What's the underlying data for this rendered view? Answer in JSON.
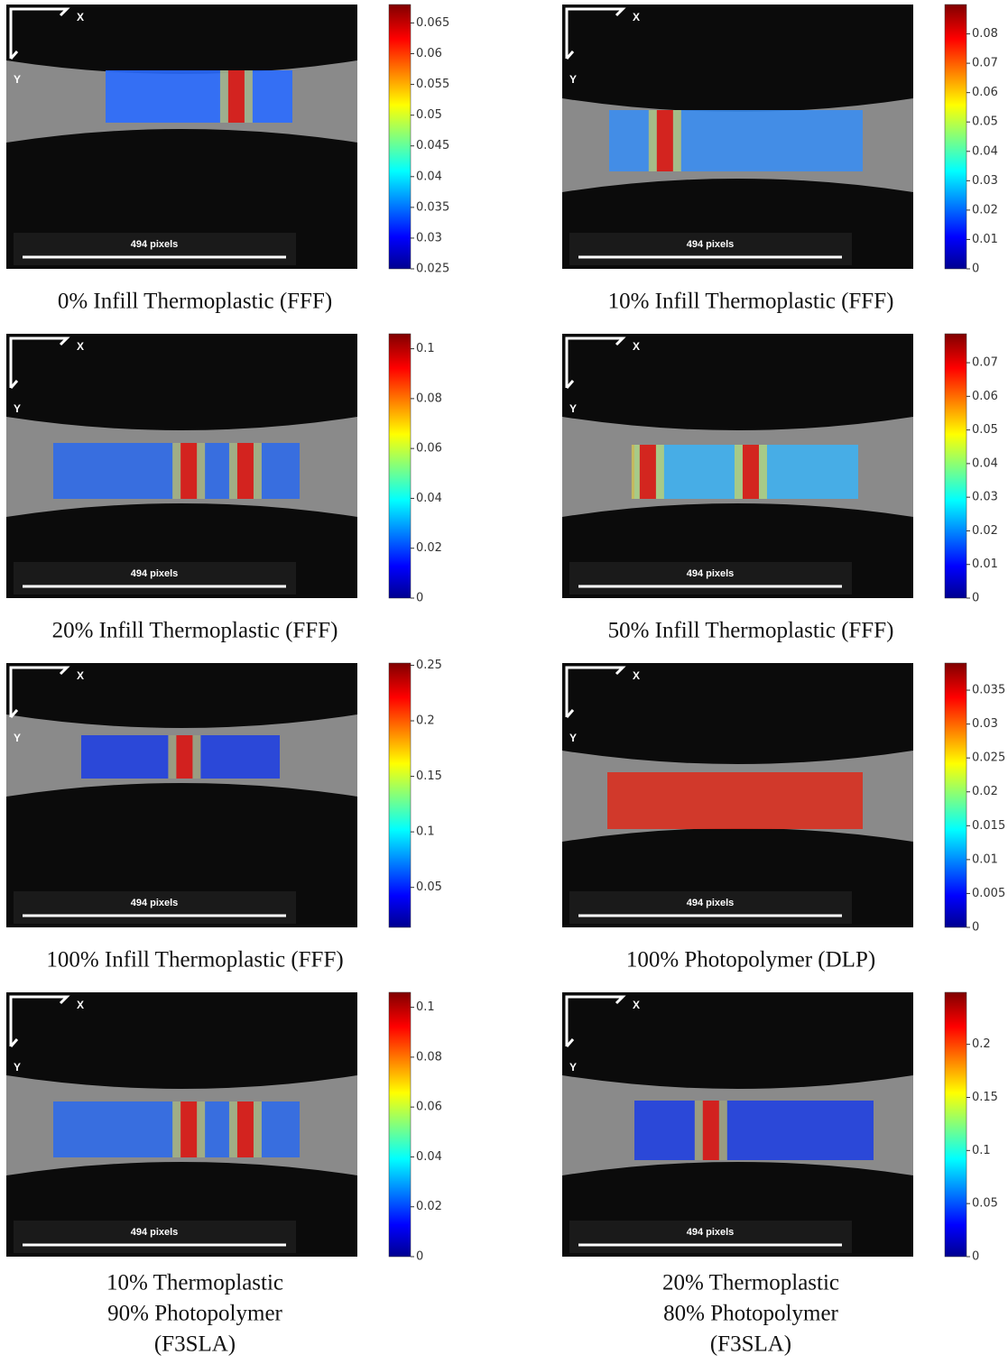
{
  "panels": [
    {
      "caption": [
        "0% Infill Thermoplastic (FFF)"
      ],
      "x_label": "X",
      "y_label": "Y",
      "scale_label": "494 pixels",
      "colorbar": {
        "lim": [
          0.025,
          0.068
        ],
        "ticks": [
          0.025,
          0.03,
          0.035,
          0.04,
          0.045,
          0.05,
          0.055,
          0.06,
          0.065
        ]
      }
    },
    {
      "caption": [
        "10% Infill Thermoplastic (FFF)"
      ],
      "x_label": "X",
      "y_label": "Y",
      "scale_label": "494 pixels",
      "colorbar": {
        "lim": [
          0,
          0.09
        ],
        "ticks": [
          0,
          0.01,
          0.02,
          0.03,
          0.04,
          0.05,
          0.06,
          0.07,
          0.08
        ]
      }
    },
    {
      "caption": [
        "20% Infill Thermoplastic (FFF)"
      ],
      "x_label": "X",
      "y_label": "Y",
      "scale_label": "494 pixels",
      "colorbar": {
        "lim": [
          0,
          0.106
        ],
        "ticks": [
          0,
          0.02,
          0.04,
          0.06,
          0.08,
          0.1
        ]
      }
    },
    {
      "caption": [
        "50% Infill Thermoplastic (FFF)"
      ],
      "x_label": "X",
      "y_label": "Y",
      "scale_label": "494 pixels",
      "colorbar": {
        "lim": [
          0,
          0.0786
        ],
        "ticks": [
          0,
          0.01,
          0.02,
          0.03,
          0.04,
          0.05,
          0.06,
          0.07
        ]
      }
    },
    {
      "caption": [
        "100% Infill Thermoplastic (FFF)"
      ],
      "x_label": "X",
      "y_label": "Y",
      "scale_label": "494 pixels",
      "colorbar": {
        "lim": [
          0.014,
          0.252
        ],
        "ticks": [
          0.05,
          0.1,
          0.15,
          0.2,
          0.25
        ]
      }
    },
    {
      "caption": [
        "100% Photopolymer (DLP)"
      ],
      "x_label": "X",
      "y_label": "Y",
      "scale_label": "494 pixels",
      "colorbar": {
        "lim": [
          0,
          0.039
        ],
        "ticks": [
          0,
          0.005,
          0.01,
          0.015,
          0.02,
          0.025,
          0.03,
          0.035
        ]
      }
    },
    {
      "caption": [
        "10% Thermoplastic",
        "90% Photopolymer",
        "(F3SLA)"
      ],
      "x_label": "X",
      "y_label": "Y",
      "scale_label": "494 pixels",
      "colorbar": {
        "lim": [
          0,
          0.106
        ],
        "ticks": [
          0,
          0.02,
          0.04,
          0.06,
          0.08,
          0.1
        ]
      }
    },
    {
      "caption": [
        "20% Thermoplastic",
        "80% Photopolymer",
        "(F3SLA)"
      ],
      "x_label": "X",
      "y_label": "Y",
      "scale_label": "494 pixels",
      "colorbar": {
        "lim": [
          0,
          0.249
        ],
        "ticks": [
          0,
          0.05,
          0.1,
          0.15,
          0.2
        ]
      }
    }
  ]
}
